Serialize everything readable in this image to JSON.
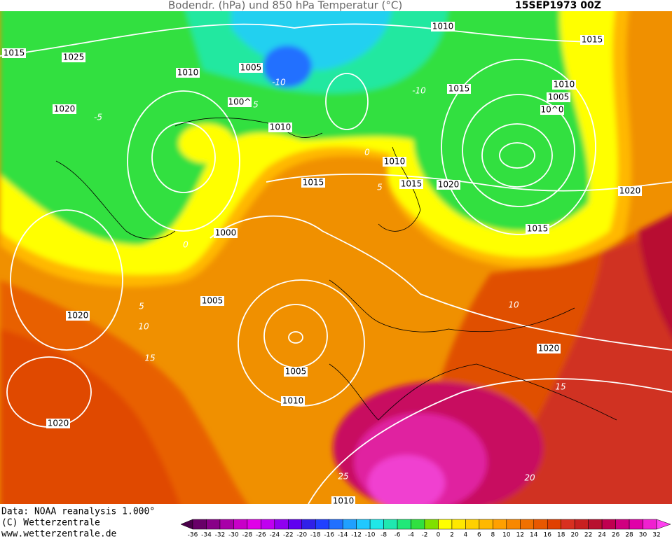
{
  "header": {
    "title": "Bodendr. (hPa) und 850 hPa Temperatur (°C)",
    "date": "15SEP1973 00Z"
  },
  "map": {
    "isobar_labels": [
      "1015",
      "1025",
      "1010",
      "1005",
      "1010",
      "1015",
      "1015",
      "1010",
      "1005",
      "10^0",
      "1020",
      "100^",
      "1010",
      "1010",
      "1015",
      "1015",
      "1020",
      "1020",
      "1000",
      "1015",
      "1005",
      "1020",
      "1005",
      "1010",
      "1020",
      "1020",
      "1010"
    ],
    "temperature_labels": [
      "-5",
      "-10",
      "-10",
      "5",
      "0",
      "5",
      "0",
      "5",
      "10",
      "15",
      "15",
      "10",
      "20",
      "25"
    ]
  },
  "footer": {
    "lines": [
      "Data: NOAA reanalysis 1.000°",
      "(C) Wetterzentrale",
      "www.wetterzentrale.de"
    ]
  },
  "colorbar": {
    "ticks": [
      -36,
      -34,
      -32,
      -30,
      -28,
      -26,
      -24,
      -22,
      -20,
      -18,
      -16,
      -14,
      -12,
      -10,
      -8,
      -6,
      -4,
      -2,
      0,
      2,
      4,
      6,
      8,
      10,
      12,
      14,
      16,
      18,
      20,
      22,
      24,
      26,
      28,
      30,
      32
    ],
    "colors": [
      "#4a004a",
      "#680068",
      "#880088",
      "#a800a8",
      "#c800c8",
      "#e000e8",
      "#c000f0",
      "#9000f0",
      "#6000f0",
      "#3020e8",
      "#2040ff",
      "#2070ff",
      "#20a0ff",
      "#20c8ff",
      "#20e8e8",
      "#20e8b0",
      "#20e878",
      "#30e040",
      "#80e000",
      "#ffff00",
      "#ffe800",
      "#ffd000",
      "#ffb800",
      "#ffa000",
      "#f88800",
      "#f07000",
      "#e85800",
      "#e04000",
      "#d83020",
      "#c82020",
      "#b81030",
      "#c00050",
      "#d00080",
      "#e000a8",
      "#f020d0",
      "#ff40f0"
    ]
  }
}
